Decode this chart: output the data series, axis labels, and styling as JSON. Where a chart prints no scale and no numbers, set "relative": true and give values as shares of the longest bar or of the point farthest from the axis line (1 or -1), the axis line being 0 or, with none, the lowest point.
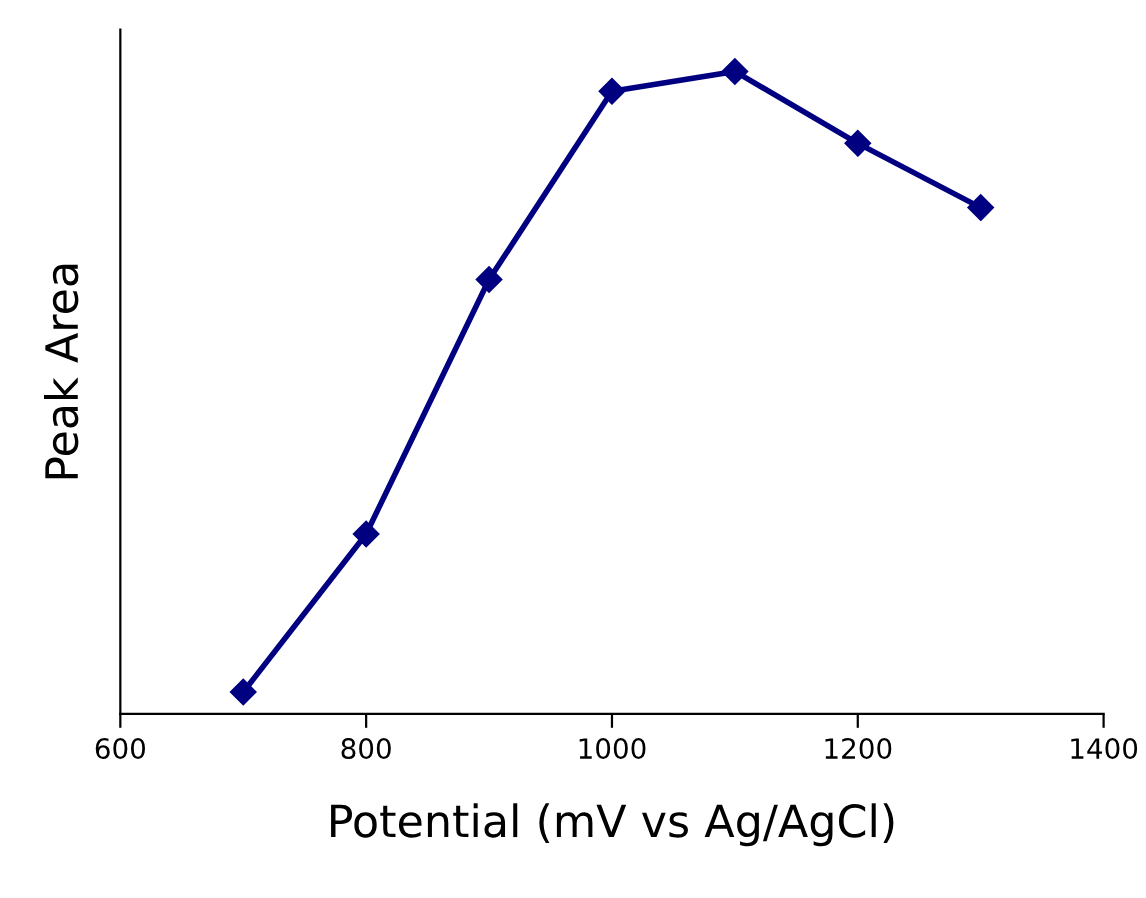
{
  "chart_data": {
    "type": "line",
    "xlabel": "Potential (mV vs Ag/AgCl)",
    "ylabel": "Peak Area",
    "relative": true,
    "x": [
      700,
      800,
      900,
      1000,
      1100,
      1200,
      1300
    ],
    "series": [
      {
        "color": "#000080",
        "values": [
          0.034,
          0.28,
          0.676,
          0.969,
          1,
          0.888,
          0.788
        ]
      }
    ],
    "xlim": [
      600,
      1400
    ],
    "xticks": [
      600,
      800,
      1000,
      1200,
      1400
    ],
    "marker": "diamond",
    "line_style": "solid",
    "grid": false,
    "legend": false
  }
}
